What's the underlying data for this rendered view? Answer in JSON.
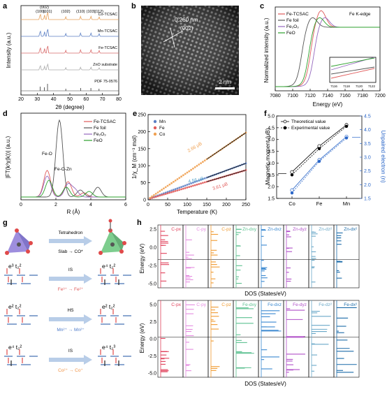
{
  "panels": {
    "a": {
      "letter": "a",
      "xlabel": "2θ (degree)",
      "ylabel": "Intensity (a.u.)",
      "xticks": [
        "20",
        "30",
        "40",
        "50",
        "60",
        "70",
        "80"
      ],
      "traces": [
        {
          "name": "Co-TCSAC",
          "color": "#e6a05a"
        },
        {
          "name": "Mn-TCSAC",
          "color": "#5b7fc4"
        },
        {
          "name": "Fe-TCSAC",
          "color": "#d96b6b"
        },
        {
          "name": "ZnO substrate",
          "color": "#aaaaaa"
        },
        {
          "name": "PDF 75-0576",
          "color": "#333333"
        }
      ],
      "peaks": [
        {
          "hkl": "(100)",
          "two_theta": 31.8
        },
        {
          "hkl": "(002)",
          "two_theta": 34.4
        },
        {
          "hkl": "(101)",
          "two_theta": 36.3
        },
        {
          "hkl": "(102)",
          "two_theta": 47.5
        },
        {
          "hkl": "(110)",
          "two_theta": 56.6
        },
        {
          "hkl": "(103)",
          "two_theta": 62.9
        },
        {
          "hkl": "(112)",
          "two_theta": 67.9
        }
      ]
    },
    "b": {
      "letter": "b",
      "spacing": "0.260 nm",
      "plane": "(002)",
      "scalebar": "2 nm"
    },
    "c": {
      "letter": "c",
      "title": "Fe K-edge",
      "xlabel": "Energy (eV)",
      "ylabel": "Normalized intensity (a.u.)",
      "xticks": [
        "7080",
        "7100",
        "7120",
        "7140",
        "7160",
        "7180",
        "7200"
      ],
      "inset_xticks": [
        "7116",
        "7118",
        "7120",
        "7122"
      ],
      "legend": [
        {
          "name": "Fe-TCSAC",
          "color": "#e05a5a"
        },
        {
          "name": "Fe foil",
          "color": "#555555"
        },
        {
          "name": "Fe₂O₃",
          "color": "#9467bd"
        },
        {
          "name": "FeO",
          "color": "#2ca02c"
        }
      ]
    },
    "d": {
      "letter": "d",
      "xlabel": "R (Å)",
      "ylabel": "|FT(k³χ(k))| (a.u.)",
      "xticks": [
        "0",
        "2",
        "4",
        "6"
      ],
      "annotations": [
        "Fe-O",
        "Fe-O-Zn"
      ],
      "legend": [
        {
          "name": "Fe-TCSAC",
          "color": "#e05a5a"
        },
        {
          "name": "Fe foil",
          "color": "#555555"
        },
        {
          "name": "Fe₂O₃",
          "color": "#9467bd"
        },
        {
          "name": "FeO",
          "color": "#2ca02c"
        }
      ]
    },
    "e": {
      "letter": "e",
      "xlabel": "Temperature (K)",
      "ylabel": "1/χ_M (cm⁻³ mol)",
      "xticks": [
        "0",
        "50",
        "100",
        "150",
        "200",
        "250"
      ],
      "yticks": [
        "0",
        "50",
        "100",
        "150",
        "200",
        "250"
      ],
      "legend": [
        {
          "name": "Mn",
          "color": "#5b7fc4"
        },
        {
          "name": "Fe",
          "color": "#e05a5a"
        },
        {
          "name": "Co",
          "color": "#f0a050"
        }
      ],
      "moments": [
        {
          "label": "2.66 μB",
          "color": "#f0a050"
        },
        {
          "label": "4.56 μB",
          "color": "#4fa0c8"
        },
        {
          "label": "3.61 μB",
          "color": "#e05a5a"
        }
      ]
    },
    "f": {
      "letter": "f",
      "ylabel_left": "Magnetic moment (μB)",
      "ylabel_right": "Unpaired electron (n)",
      "categories": [
        "Co",
        "Fe",
        "Mn"
      ],
      "yticks_left": [
        "1.5",
        "2.0",
        "2.5",
        "3.0",
        "3.5",
        "4.0",
        "4.5",
        "5.0"
      ],
      "yticks_right": [
        "1.5",
        "2.0",
        "2.5",
        "3.0",
        "3.5",
        "4.0",
        "4.5"
      ],
      "legend": [
        {
          "name": "Theoretical value"
        },
        {
          "name": "Experimental value"
        }
      ]
    },
    "g": {
      "letter": "g",
      "arrow1_top": "Tetrahedron",
      "arrow1_bottom": "Slab → CO*",
      "rows": [
        {
          "left": "e³ t₂²",
          "right": "e⁴ t₂²",
          "spin": "IS",
          "ion": "Fe³⁺ → Fe²⁺",
          "color": "#e05a5a"
        },
        {
          "left": "e² t₂²",
          "right": "e² t₂²",
          "spin": "HS",
          "ion": "Mn²⁺ → Mn²⁺",
          "color": "#4a78c8"
        },
        {
          "left": "e⁴ t₂²",
          "right": "e⁴ t₂³",
          "spin": "IS",
          "ion": "Co²⁺ → Co⁺",
          "color": "#f09040"
        }
      ]
    },
    "h": {
      "letter": "h",
      "ylabel": "Energy (eV)",
      "xlabel": "DOS (States/eV)",
      "yticks_top": [
        "2.5",
        "0.0",
        "-2.5",
        "-5.0"
      ],
      "yticks_bottom": [
        "5.0",
        "2.5",
        "0.0",
        "-2.5",
        "-5.0"
      ],
      "top_cols": [
        {
          "label": "C-px",
          "color": "#e0405a"
        },
        {
          "label": "C-py",
          "color": "#e48be0"
        },
        {
          "label": "C-pz",
          "color": "#f09a30"
        },
        {
          "label": "Zn-dxy",
          "color": "#5cc090"
        },
        {
          "label": "Zn-dxz",
          "color": "#3a88d0"
        },
        {
          "label": "Zn-dyz",
          "color": "#b050c8"
        },
        {
          "label": "Zn-dz²",
          "color": "#6aa8c8"
        },
        {
          "label": "Zn-dx²",
          "color": "#1a6aa8"
        }
      ],
      "bottom_cols": [
        {
          "label": "C-px",
          "color": "#e0405a"
        },
        {
          "label": "C-py",
          "color": "#e48be0"
        },
        {
          "label": "C-pz",
          "color": "#f09a30"
        },
        {
          "label": "Fe-dxy",
          "color": "#5cc090"
        },
        {
          "label": "Fe-dxz",
          "color": "#3a88d0"
        },
        {
          "label": "Fe-dyz",
          "color": "#b050c8"
        },
        {
          "label": "Fe-dz²",
          "color": "#6aa8c8"
        },
        {
          "label": "Fe-dx²",
          "color": "#1a6aa8"
        }
      ]
    }
  }
}
